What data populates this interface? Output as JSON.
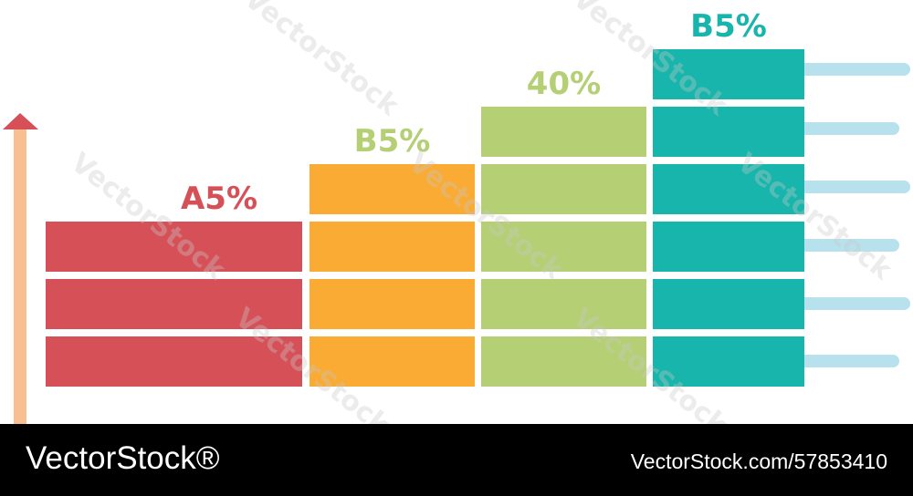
{
  "chart_data": {
    "type": "bar",
    "style": "stacked blocks (each bar built from equal horizontal segments)",
    "categories": [
      "",
      "",
      "",
      ""
    ],
    "bar_labels": [
      "A5%",
      "B5%",
      "40%",
      "B5%"
    ],
    "segment_counts": [
      3,
      4,
      5,
      6
    ],
    "colors": [
      "#d65058",
      "#f9ab33",
      "#b5cf75",
      "#17b5ab"
    ],
    "label_colors": [
      "#d65058",
      "#b5cf75",
      "#b5cf75",
      "#17b5ab"
    ],
    "arrow_color": "#f8c090",
    "guide_line_color": "#b7e1ec",
    "guide_line_count": 6,
    "axes_shown": false,
    "grid": false,
    "legend": "none"
  },
  "watermark": {
    "text": "VectorStock"
  },
  "footer": {
    "brand": "VectorStock®",
    "image_id": "VectorStock.com/57853410"
  }
}
